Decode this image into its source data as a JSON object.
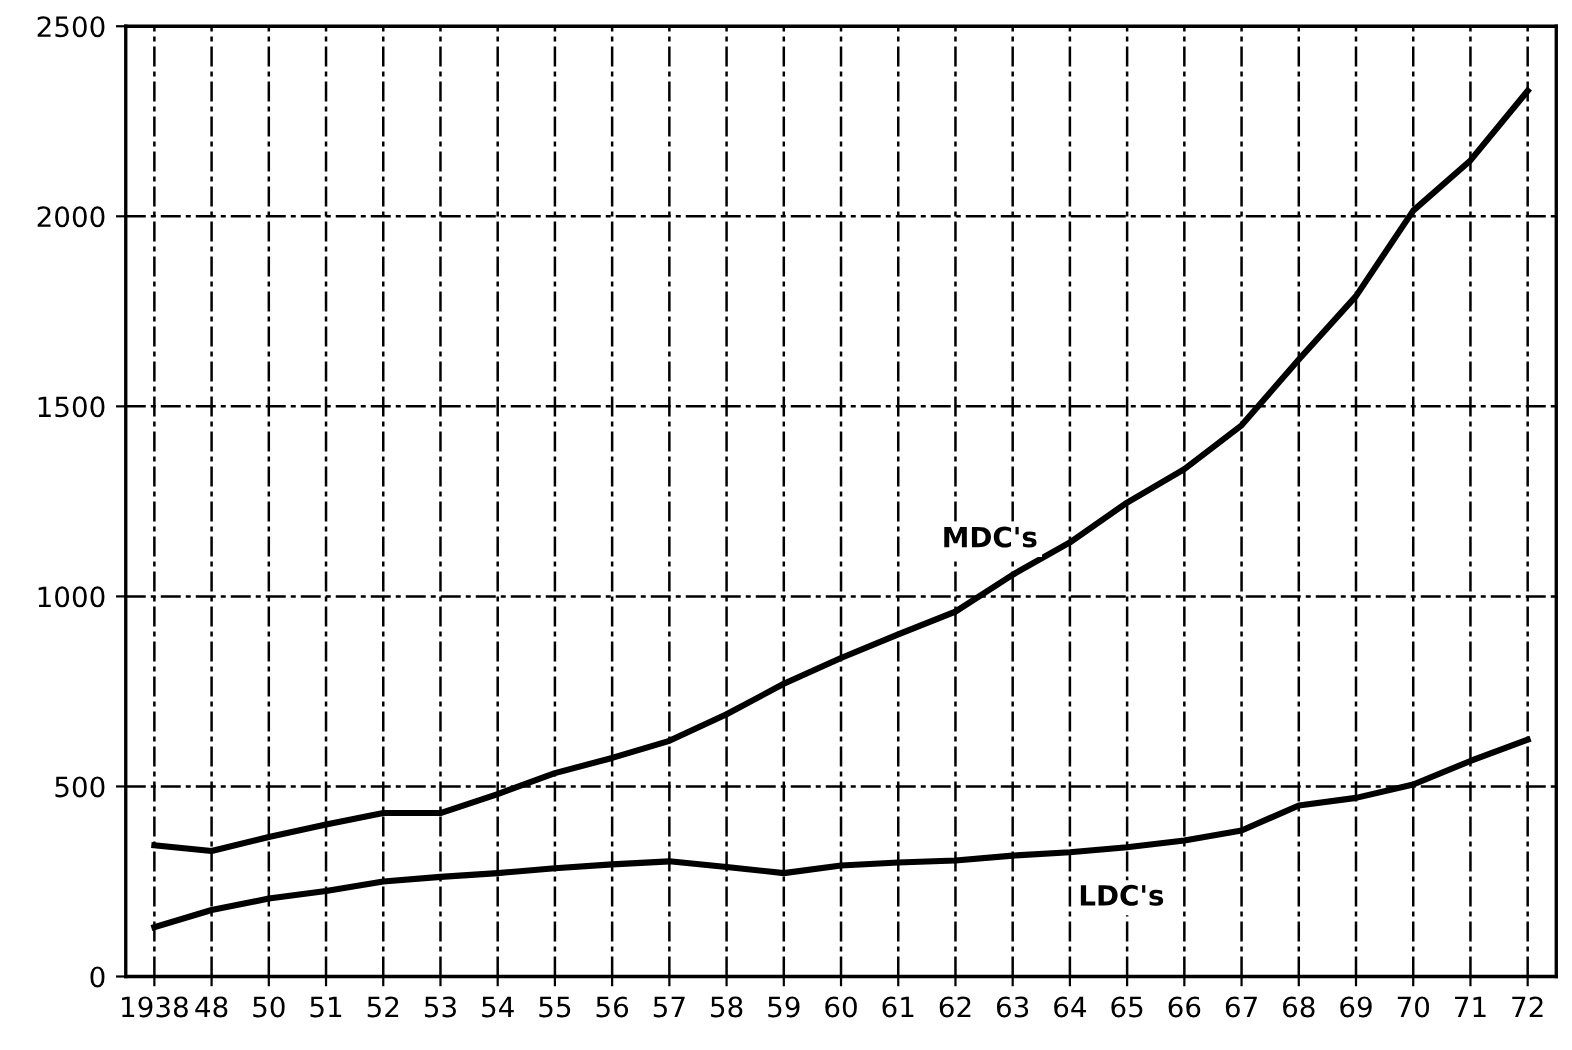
{
  "chart_data": {
    "type": "line",
    "categories": [
      "1938",
      "48",
      "50",
      "51",
      "52",
      "53",
      "54",
      "55",
      "56",
      "57",
      "58",
      "59",
      "60",
      "61",
      "62",
      "63",
      "64",
      "65",
      "66",
      "67",
      "68",
      "69",
      "70",
      "71",
      "72"
    ],
    "series": [
      {
        "name": "MDC's",
        "color": "#000000",
        "values": [
          345,
          330,
          367,
          400,
          430,
          430,
          480,
          535,
          575,
          620,
          690,
          770,
          838,
          900,
          960,
          1057,
          1142,
          1247,
          1335,
          1450,
          1623,
          1790,
          2015,
          2147,
          2330
        ]
      },
      {
        "name": "LDC's",
        "color": "#000000",
        "values": [
          130,
          175,
          205,
          225,
          250,
          262,
          272,
          285,
          295,
          303,
          288,
          272,
          292,
          300,
          305,
          318,
          327,
          340,
          358,
          384,
          450,
          470,
          505,
          567,
          623
        ]
      }
    ],
    "ylim": [
      0,
      2500
    ],
    "yticks": [
      0,
      500,
      1000,
      1500,
      2000,
      2500
    ],
    "grid": true,
    "legend": false,
    "marker": "none",
    "line_style": "solid"
  }
}
